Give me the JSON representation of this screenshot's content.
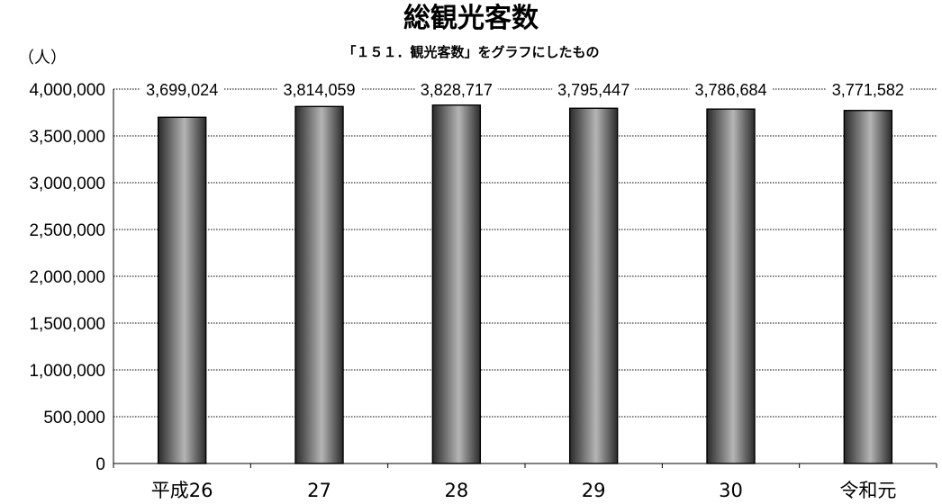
{
  "chart_data": {
    "type": "bar",
    "title": "総観光客数",
    "subtitle": "「１５１．観光客数」をグラフにしたもの",
    "ylabel": "（人）",
    "xlabel": "",
    "categories": [
      "平成26",
      "27",
      "28",
      "29",
      "30",
      "令和元"
    ],
    "values": [
      3699024,
      3814059,
      3828717,
      3795447,
      3786684,
      3771582
    ],
    "data_labels": [
      "3,699,024",
      "3,814,059",
      "3,828,717",
      "3,795,447",
      "3,786,684",
      "3,771,582"
    ],
    "ylim": [
      0,
      4000000
    ],
    "y_ticks": [
      0,
      500000,
      1000000,
      1500000,
      2000000,
      2500000,
      3000000,
      3500000,
      4000000
    ],
    "y_tick_labels": [
      "0",
      "500,000",
      "1,000,000",
      "1,500,000",
      "2,000,000",
      "2,500,000",
      "3,000,000",
      "3,500,000",
      "4,000,000"
    ],
    "grid": true,
    "legend": "none",
    "colors": {
      "bar_dark": "#2a2a2a",
      "bar_light": "#b5b5b5",
      "grid": "#000000",
      "axis": "#000000"
    }
  }
}
